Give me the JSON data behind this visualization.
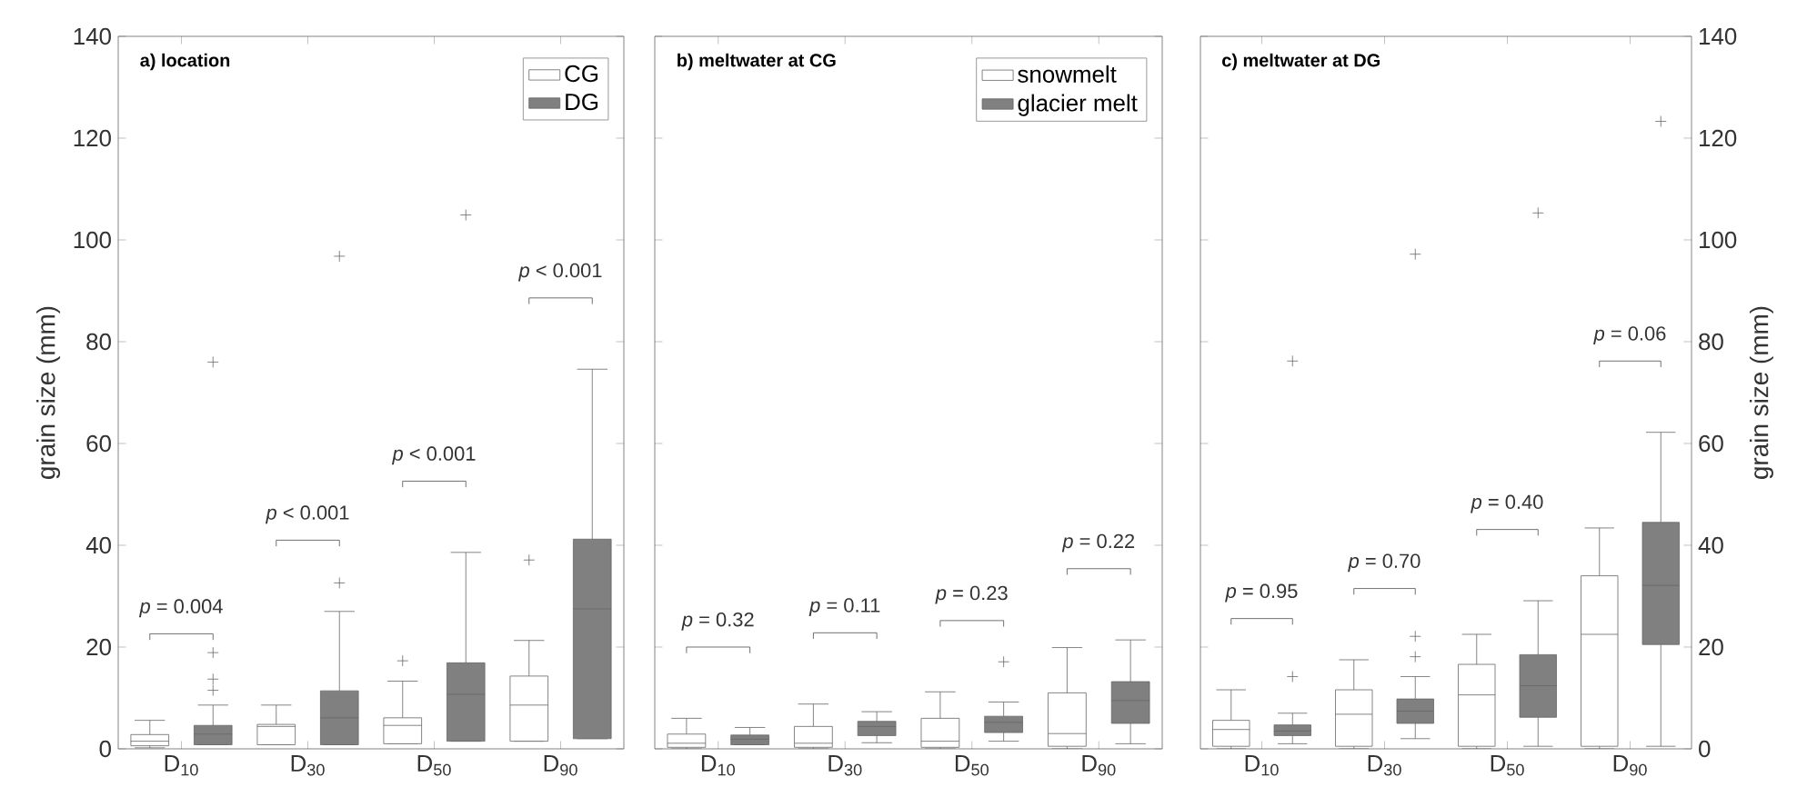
{
  "chart_data": [
    {
      "type": "box",
      "title": "a) location",
      "ylabel": "grain size (mm)",
      "categories": [
        "D$_{10}$",
        "D$_{30}$",
        "D$_{50}$",
        "D$_{90}$"
      ],
      "ylim": [
        0,
        140
      ],
      "yticks": [
        0,
        20,
        40,
        60,
        80,
        100,
        120,
        140
      ],
      "legend": "top right",
      "series": [
        {
          "name": "CG",
          "color": "#ffffff",
          "boxes": [
            {
              "low": 0.2,
              "q1": 0.6,
              "median": 1.5,
              "q3": 2.8,
              "high": 5.6
            },
            {
              "low": 0.8,
              "q1": 0.8,
              "median": 4.4,
              "q3": 4.8,
              "high": 8.6
            },
            {
              "low": 1.0,
              "q1": 1.0,
              "median": 4.6,
              "q3": 6.1,
              "high": 13.3,
              "outliers": [
                17.3
              ]
            },
            {
              "low": 1.5,
              "q1": 1.5,
              "median": 8.6,
              "q3": 14.3,
              "high": 21.3,
              "outliers": [
                37.1
              ]
            }
          ]
        },
        {
          "name": "DG",
          "color": "#808080",
          "boxes": [
            {
              "low": 0.8,
              "q1": 0.8,
              "median": 2.9,
              "q3": 4.6,
              "high": 8.6,
              "outliers": [
                11.5,
                13.7,
                18.9,
                76
              ]
            },
            {
              "low": 0.8,
              "q1": 0.8,
              "median": 6.1,
              "q3": 11.4,
              "high": 27,
              "outliers": [
                32.6,
                96.8
              ]
            },
            {
              "low": 1.5,
              "q1": 1.5,
              "median": 10.7,
              "q3": 16.9,
              "high": 38.6,
              "outliers": [
                104.9
              ]
            },
            {
              "low": 2,
              "q1": 2,
              "median": 27.5,
              "q3": 41.2,
              "high": 74.6
            }
          ]
        }
      ],
      "annotations": [
        "*p* = 0.004",
        "*p* < 0.001",
        "*p* < 0.001",
        "*p* < 0.001"
      ]
    },
    {
      "type": "box",
      "title": "b) meltwater at CG",
      "categories": [
        "D$_{10}$",
        "D$_{30}$",
        "D$_{50}$",
        "D$_{90}$"
      ],
      "ylim": [
        0,
        140
      ],
      "yticks": [
        0,
        20,
        40,
        60,
        80,
        100,
        120,
        140
      ],
      "tick_labels": "x",
      "legend": "top right",
      "series": [
        {
          "name": "snowmelt",
          "color": "#ffffff",
          "boxes": [
            {
              "low": 0,
              "q1": 0.3,
              "median": 1.1,
              "q3": 2.9,
              "high": 6
            },
            {
              "low": 0,
              "q1": 0.3,
              "median": 1.1,
              "q3": 4.4,
              "high": 8.8
            },
            {
              "low": 0,
              "q1": 0.3,
              "median": 1.5,
              "q3": 6,
              "high": 11.2
            },
            {
              "low": 0,
              "q1": 0.5,
              "median": 3,
              "q3": 11,
              "high": 19.9
            }
          ]
        },
        {
          "name": "glacier melt",
          "color": "#808080",
          "boxes": [
            {
              "low": 0.8,
              "q1": 0.8,
              "median": 1.9,
              "q3": 2.7,
              "high": 4.2
            },
            {
              "low": 1.2,
              "q1": 2.6,
              "median": 4.4,
              "q3": 5.4,
              "high": 7.3
            },
            {
              "low": 1.5,
              "q1": 3.2,
              "median": 5.2,
              "q3": 6.4,
              "high": 9.2,
              "outliers": [
                17.1
              ]
            },
            {
              "low": 1,
              "q1": 5,
              "median": 9.5,
              "q3": 13.2,
              "high": 21.4
            }
          ]
        }
      ],
      "annotations": [
        "*p* = 0.32",
        "*p* = 0.11",
        "*p* = 0.23",
        "*p* = 0.22"
      ]
    },
    {
      "type": "box",
      "title": "c) meltwater at DG",
      "y2label": "grain size (mm)",
      "categories": [
        "D$_{10}$",
        "D$_{30}$",
        "D$_{50}$",
        "D$_{90}$"
      ],
      "y2lim": [
        0,
        140
      ],
      "y2ticks": [
        0,
        20,
        40,
        60,
        80,
        100,
        120,
        140
      ],
      "series": [
        {
          "color": "#ffffff",
          "axis": "y2",
          "boxes": [
            {
              "low": 0,
              "q1": 0.5,
              "median": 3.8,
              "q3": 5.6,
              "high": 11.6
            },
            {
              "low": 0,
              "q1": 0.5,
              "median": 6.8,
              "q3": 11.6,
              "high": 17.5
            },
            {
              "low": 0,
              "q1": 0.5,
              "median": 10.6,
              "q3": 16.6,
              "high": 22.5
            },
            {
              "low": 0,
              "q1": 0.5,
              "median": 22.5,
              "q3": 34,
              "high": 43.4
            }
          ]
        },
        {
          "color": "#808080",
          "axis": "y2",
          "boxes": [
            {
              "low": 1,
              "q1": 2.6,
              "median": 3.5,
              "q3": 4.7,
              "high": 7,
              "outliers": [
                14.2,
                76.2
              ]
            },
            {
              "low": 2,
              "q1": 5,
              "median": 7.4,
              "q3": 9.8,
              "high": 14.2,
              "outliers": [
                18.1,
                22.1,
                97.2
              ]
            },
            {
              "low": 0.5,
              "q1": 6.2,
              "median": 12.4,
              "q3": 18.5,
              "high": 29.1,
              "outliers": [
                105.3
              ]
            },
            {
              "low": 0.5,
              "q1": 20.5,
              "median": 32.1,
              "q3": 44.5,
              "high": 62.2,
              "outliers": [
                123.3
              ]
            }
          ]
        }
      ],
      "annotations": [
        "*p* = 0.95",
        "*p* = 0.70",
        "*p* = 0.40",
        "*p* = 0.06"
      ]
    }
  ]
}
